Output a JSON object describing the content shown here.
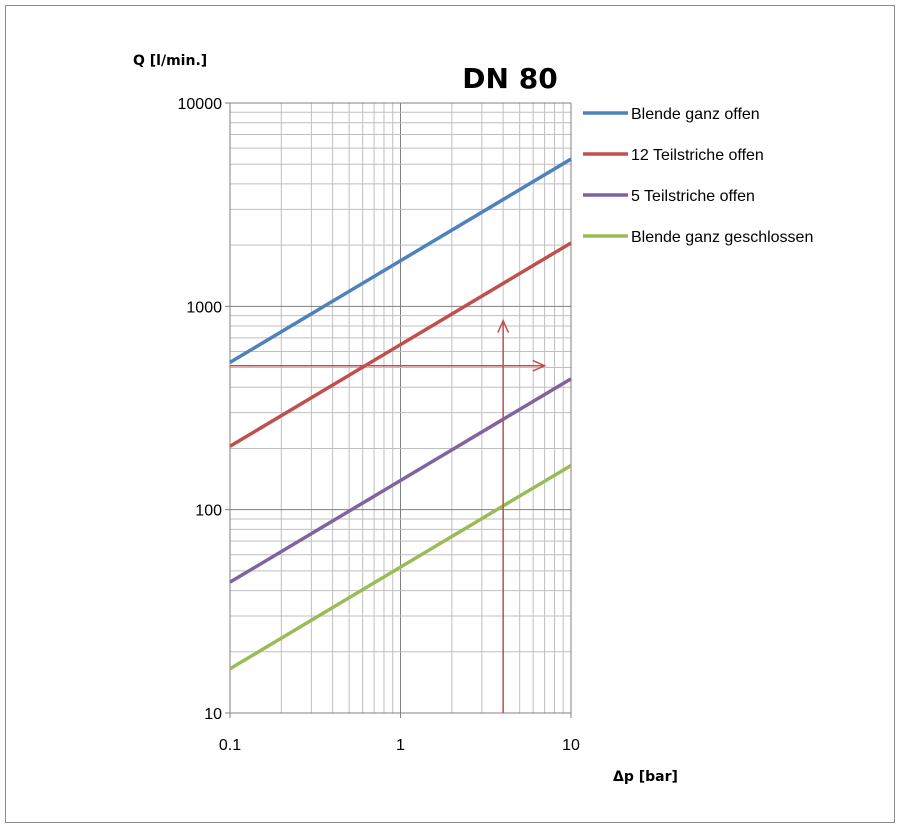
{
  "chart_data": {
    "type": "line",
    "title": "DN 80",
    "ylabel": "Q [l/min.]",
    "xlabel": "Δp [bar]",
    "x_scale": "log",
    "y_scale": "log",
    "xlim": [
      0.1,
      10
    ],
    "ylim": [
      10,
      10000
    ],
    "x_ticks": [
      "0.1",
      "1",
      "10"
    ],
    "y_ticks": [
      "10",
      "100",
      "1000",
      "10000"
    ],
    "grid": true,
    "legend_position": "right",
    "series": [
      {
        "name": "Blende ganz offen",
        "color": "#4f81bd",
        "x": [
          0.1,
          10
        ],
        "values": [
          530,
          5300
        ]
      },
      {
        "name": "12 Teilstriche offen",
        "color": "#c0504d",
        "x": [
          0.1,
          10
        ],
        "values": [
          205,
          2050
        ]
      },
      {
        "name": "5 Teilstriche offen",
        "color": "#8064a2",
        "x": [
          0.1,
          10
        ],
        "values": [
          44,
          440
        ]
      },
      {
        "name": "Blende ganz geschlossen",
        "color": "#9bbb59",
        "x": [
          0.1,
          10
        ],
        "values": [
          16.5,
          165
        ]
      }
    ],
    "annotations": [
      {
        "type": "arrow",
        "color": "#c0504d",
        "from": [
          0.1,
          510
        ],
        "to": [
          7,
          510
        ]
      },
      {
        "type": "arrow",
        "color": "#c0504d",
        "from": [
          4,
          10
        ],
        "to": [
          4,
          850
        ]
      }
    ]
  }
}
